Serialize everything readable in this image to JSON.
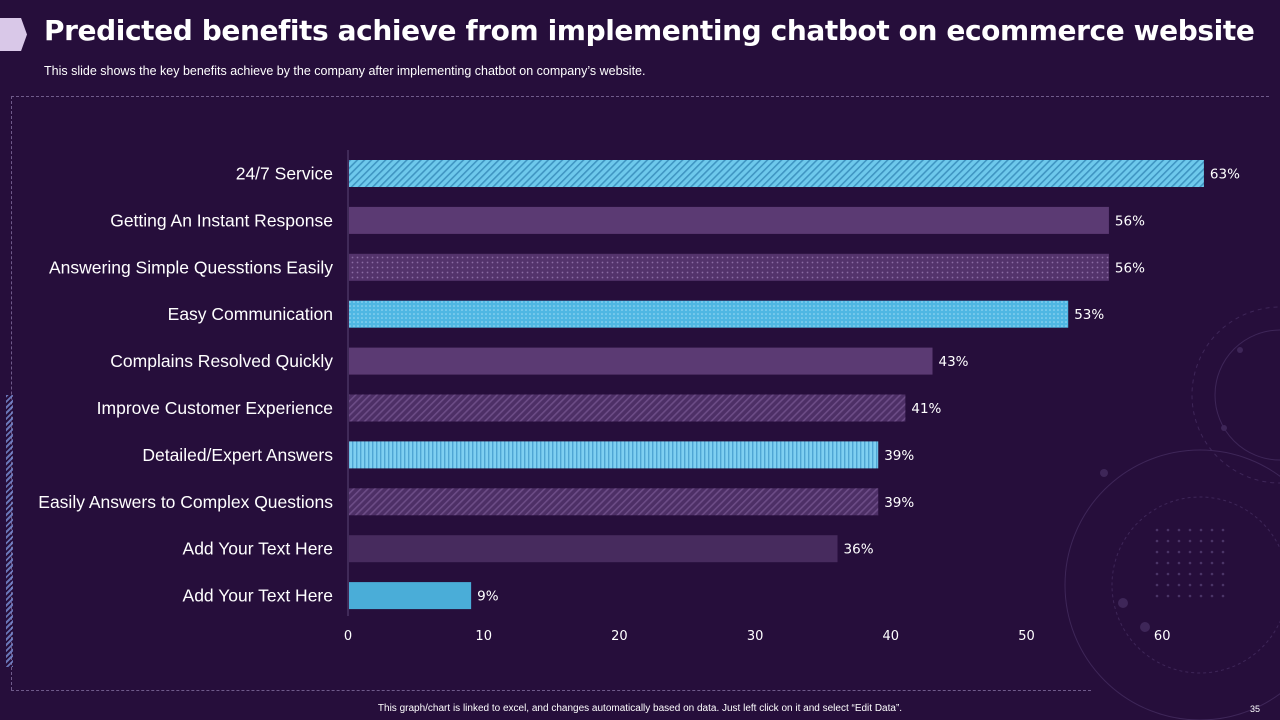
{
  "slide": {
    "title": "Predicted benefits achieve from implementing chatbot on ecommerce website",
    "subtitle": "This slide shows the key benefits achieve by the company after implementing  chatbot on company’s website.",
    "footer": "This graph/chart is linked to excel, and changes automatically based on data. Just left click on it and select “Edit Data”.",
    "page_number": "35"
  },
  "colors": {
    "background": "#260e3b",
    "cyan": "#6ec9ec",
    "cyan_solid": "#4aadd8",
    "purple": "#5b3a73",
    "purple_dark": "#472b5e"
  },
  "chart_data": {
    "type": "bar",
    "orientation": "horizontal",
    "title": "",
    "xlabel": "",
    "ylabel": "",
    "xlim": [
      0,
      63
    ],
    "xticks": [
      0,
      10,
      20,
      30,
      40,
      50,
      60
    ],
    "grid": false,
    "legend": "none",
    "categories": [
      "24/7 Service",
      "Getting An Instant Response",
      "Answering Simple Quesstions Easily",
      "Easy Communication",
      "Complains Resolved Quickly",
      "Improve Customer Experience",
      "Detailed/Expert Answers",
      "Easily Answers to Complex Questions",
      "Add Your Text Here",
      "Add Your Text Here"
    ],
    "values": [
      63,
      56,
      56,
      53,
      43,
      41,
      39,
      39,
      36,
      9
    ],
    "value_labels": [
      "63%",
      "56%",
      "56%",
      "53%",
      "43%",
      "41%",
      "39%",
      "39%",
      "36%",
      "9%"
    ],
    "bar_fills": [
      "cyan-diag",
      "purple",
      "purple-dots",
      "cyan-dots",
      "purple",
      "purple-diag",
      "cyan-vert",
      "purple-diag",
      "purple-dark",
      "cyan-solid"
    ]
  }
}
